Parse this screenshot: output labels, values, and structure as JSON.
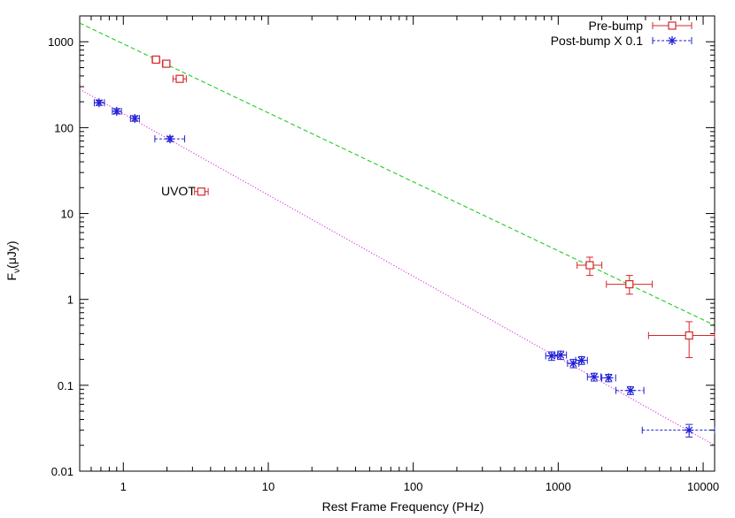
{
  "chart_data": {
    "type": "scatter",
    "title": "",
    "xlabel": "Rest Frame Frequency (PHz)",
    "ylabel": {
      "prefix": "F",
      "subscript": "ν",
      "suffix": "(μJy)"
    },
    "xscale": "log",
    "yscale": "log",
    "xlim": [
      0.5,
      12000
    ],
    "ylim": [
      0.01,
      2000
    ],
    "x_ticks": [
      {
        "value": 1,
        "label": "1"
      },
      {
        "value": 10,
        "label": "10"
      },
      {
        "value": 100,
        "label": "100"
      },
      {
        "value": 1000,
        "label": "1000"
      },
      {
        "value": 10000,
        "label": "10000"
      }
    ],
    "y_ticks": [
      {
        "value": 0.01,
        "label": "0.01"
      },
      {
        "value": 0.1,
        "label": "0.1"
      },
      {
        "value": 1,
        "label": "1"
      },
      {
        "value": 10,
        "label": "10"
      },
      {
        "value": 100,
        "label": "100"
      },
      {
        "value": 1000,
        "label": "1000"
      }
    ],
    "legend_position": "top-right",
    "series": [
      {
        "name": "Pre-bump",
        "color": "#d62728",
        "marker": "square",
        "line_style": "solid",
        "points": [
          {
            "x": 1.68,
            "y": 620,
            "xerr": [
              1.58,
              1.78
            ],
            "yerr": [
              580,
              660
            ]
          },
          {
            "x": 1.98,
            "y": 555,
            "xerr": [
              1.86,
              2.1
            ],
            "yerr": [
              520,
              590
            ]
          },
          {
            "x": 2.45,
            "y": 370,
            "xerr": [
              2.2,
              2.72
            ],
            "yerr": [
              345,
              395
            ]
          },
          {
            "x": 3.45,
            "y": 18,
            "xerr": [
              3.1,
              3.85
            ],
            "yerr": [
              17,
              19
            ]
          },
          {
            "x": 1650,
            "y": 2.5,
            "xerr": [
              1350,
              2000
            ],
            "yerr": [
              1.9,
              3.1
            ]
          },
          {
            "x": 3100,
            "y": 1.5,
            "xerr": [
              2150,
              4450
            ],
            "yerr": [
              1.15,
              1.9
            ]
          },
          {
            "x": 8000,
            "y": 0.38,
            "xerr": [
              4200,
              12000
            ],
            "yerr": [
              0.21,
              0.55
            ]
          }
        ]
      },
      {
        "name": "Post-bump X 0.1",
        "color": "#1f1fd6",
        "marker": "star",
        "line_style": "dashed",
        "points": [
          {
            "x": 0.68,
            "y": 195,
            "xerr": [
              0.63,
              0.74
            ],
            "yerr": [
              182,
              208
            ]
          },
          {
            "x": 0.9,
            "y": 155,
            "xerr": [
              0.84,
              0.97
            ],
            "yerr": [
              145,
              166
            ]
          },
          {
            "x": 1.2,
            "y": 128,
            "xerr": [
              1.12,
              1.29
            ],
            "yerr": [
              119,
              137
            ]
          },
          {
            "x": 2.1,
            "y": 74,
            "xerr": [
              1.65,
              2.65
            ],
            "yerr": [
              69,
              79
            ]
          },
          {
            "x": 900,
            "y": 0.22,
            "xerr": [
              820,
              990
            ],
            "yerr": [
              0.195,
              0.245
            ]
          },
          {
            "x": 1040,
            "y": 0.225,
            "xerr": [
              950,
              1140
            ],
            "yerr": [
              0.2,
              0.25
            ]
          },
          {
            "x": 1270,
            "y": 0.18,
            "xerr": [
              1160,
              1390
            ],
            "yerr": [
              0.16,
              0.2
            ]
          },
          {
            "x": 1450,
            "y": 0.195,
            "xerr": [
              1320,
              1590
            ],
            "yerr": [
              0.175,
              0.215
            ]
          },
          {
            "x": 1770,
            "y": 0.125,
            "xerr": [
              1590,
              1970
            ],
            "yerr": [
              0.112,
              0.138
            ]
          },
          {
            "x": 2230,
            "y": 0.122,
            "xerr": [
              2000,
              2490
            ],
            "yerr": [
              0.11,
              0.134
            ]
          },
          {
            "x": 3150,
            "y": 0.087,
            "xerr": [
              2500,
              3900
            ],
            "yerr": [
              0.078,
              0.096
            ]
          },
          {
            "x": 8000,
            "y": 0.03,
            "xerr": [
              3800,
              12000
            ],
            "yerr": [
              0.025,
              0.035
            ]
          }
        ]
      }
    ],
    "fit_lines": [
      {
        "color": "#22cc22",
        "style": "dashed",
        "points": [
          {
            "x": 0.5,
            "y": 1650
          },
          {
            "x": 12000,
            "y": 0.5
          }
        ]
      },
      {
        "color": "#dd33dd",
        "style": "dotted",
        "points": [
          {
            "x": 0.5,
            "y": 280
          },
          {
            "x": 12000,
            "y": 0.02
          }
        ]
      }
    ],
    "annotations": [
      {
        "text": "UVOT",
        "x": 3.15,
        "y": 16.3
      }
    ]
  }
}
